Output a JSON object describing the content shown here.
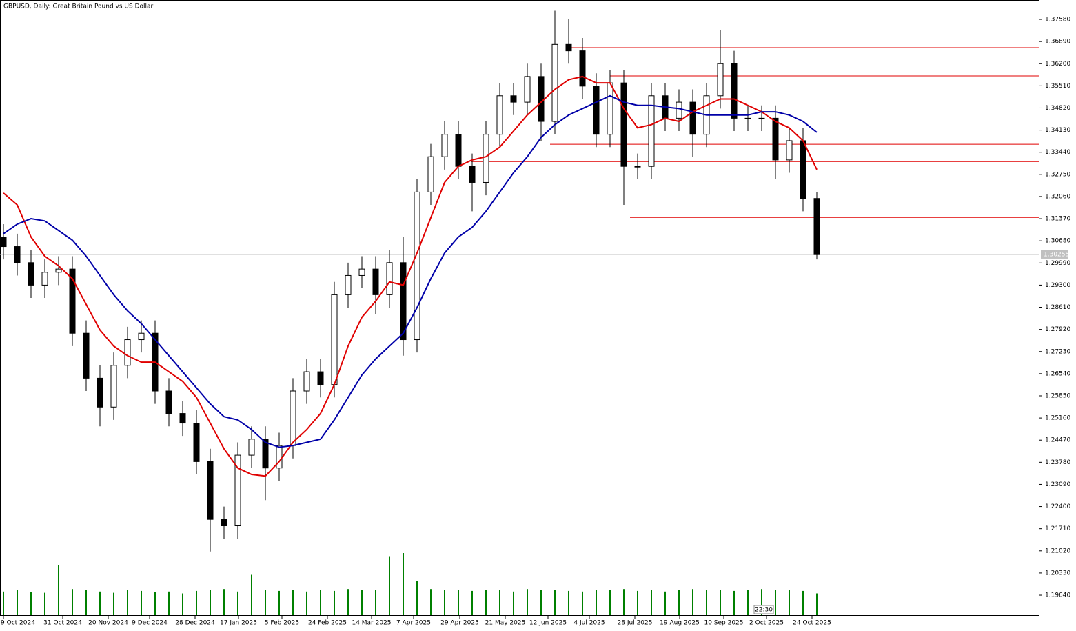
{
  "chart_data": {
    "type": "candlestick",
    "title": "GBPUSD, Daily:  Great Britain Pound vs US Dollar",
    "open": [
      1.308,
      1.305,
      1.3,
      1.293,
      1.297,
      1.298,
      1.278,
      1.264,
      1.255,
      1.268,
      1.276,
      1.278,
      1.26,
      1.253,
      1.25,
      1.238,
      1.22,
      1.218,
      1.24,
      1.245,
      1.236,
      1.243,
      1.26,
      1.266,
      1.262,
      1.29,
      1.296,
      1.298,
      1.29,
      1.3,
      1.276,
      1.322,
      1.333,
      1.34,
      1.33,
      1.325,
      1.34,
      1.352,
      1.35,
      1.358,
      1.344,
      1.368,
      1.366,
      1.355,
      1.34,
      1.356,
      1.33,
      1.33,
      1.352,
      1.345,
      1.35,
      1.34,
      1.352,
      1.362,
      1.345,
      1.345,
      1.345,
      1.332,
      1.338,
      1.32
    ],
    "high": [
      1.312,
      1.309,
      1.304,
      1.301,
      1.302,
      1.302,
      1.282,
      1.268,
      1.272,
      1.28,
      1.282,
      1.282,
      1.264,
      1.257,
      1.254,
      1.242,
      1.224,
      1.244,
      1.249,
      1.249,
      1.247,
      1.264,
      1.27,
      1.27,
      1.294,
      1.3,
      1.302,
      1.302,
      1.304,
      1.308,
      1.326,
      1.337,
      1.344,
      1.344,
      1.334,
      1.344,
      1.356,
      1.356,
      1.362,
      1.362,
      1.3785,
      1.376,
      1.37,
      1.359,
      1.36,
      1.36,
      1.334,
      1.356,
      1.356,
      1.354,
      1.354,
      1.356,
      1.3725,
      1.366,
      1.349,
      1.349,
      1.349,
      1.342,
      1.342,
      1.322
    ],
    "low": [
      1.301,
      1.296,
      1.289,
      1.289,
      1.293,
      1.274,
      1.26,
      1.249,
      1.251,
      1.264,
      1.272,
      1.256,
      1.249,
      1.246,
      1.234,
      1.21,
      1.214,
      1.214,
      1.236,
      1.226,
      1.232,
      1.239,
      1.256,
      1.258,
      1.258,
      1.286,
      1.292,
      1.284,
      1.286,
      1.271,
      1.272,
      1.318,
      1.329,
      1.326,
      1.316,
      1.321,
      1.336,
      1.346,
      1.346,
      1.338,
      1.34,
      1.362,
      1.351,
      1.336,
      1.336,
      1.318,
      1.326,
      1.326,
      1.341,
      1.341,
      1.333,
      1.336,
      1.348,
      1.341,
      1.341,
      1.341,
      1.326,
      1.328,
      1.316,
      1.301
    ],
    "close": [
      1.305,
      1.3,
      1.293,
      1.297,
      1.298,
      1.278,
      1.264,
      1.255,
      1.268,
      1.276,
      1.278,
      1.26,
      1.253,
      1.25,
      1.238,
      1.22,
      1.218,
      1.24,
      1.245,
      1.236,
      1.243,
      1.26,
      1.266,
      1.262,
      1.29,
      1.296,
      1.298,
      1.29,
      1.3,
      1.276,
      1.322,
      1.333,
      1.34,
      1.33,
      1.325,
      1.34,
      1.352,
      1.35,
      1.358,
      1.344,
      1.368,
      1.366,
      1.355,
      1.34,
      1.356,
      1.33,
      1.33,
      1.352,
      1.345,
      1.35,
      1.34,
      1.352,
      1.362,
      1.345,
      1.345,
      1.345,
      1.332,
      1.338,
      1.32,
      1.3025
    ],
    "series": [
      {
        "color": "#e00000",
        "values": [
          1.3217,
          1.318,
          1.308,
          1.302,
          1.299,
          1.295,
          1.287,
          1.279,
          1.274,
          1.271,
          1.269,
          1.269,
          1.266,
          1.263,
          1.258,
          1.25,
          1.242,
          1.236,
          1.234,
          1.2335,
          1.238,
          1.244,
          1.248,
          1.253,
          1.262,
          1.274,
          1.283,
          1.288,
          1.294,
          1.293,
          1.303,
          1.314,
          1.325,
          1.33,
          1.332,
          1.333,
          1.336,
          1.341,
          1.346,
          1.35,
          1.354,
          1.357,
          1.358,
          1.356,
          1.356,
          1.348,
          1.342,
          1.343,
          1.345,
          1.344,
          1.347,
          1.349,
          1.351,
          1.351,
          1.349,
          1.347,
          1.344,
          1.342,
          1.338,
          1.329
        ]
      },
      {
        "color": "#0000a8",
        "values": [
          1.309,
          1.312,
          1.3137,
          1.313,
          1.31,
          1.307,
          1.302,
          1.296,
          1.29,
          1.285,
          1.281,
          1.276,
          1.271,
          1.266,
          1.261,
          1.256,
          1.252,
          1.251,
          1.248,
          1.244,
          1.2425,
          1.243,
          1.244,
          1.245,
          1.251,
          1.258,
          1.265,
          1.27,
          1.274,
          1.278,
          1.286,
          1.295,
          1.303,
          1.308,
          1.311,
          1.316,
          1.322,
          1.328,
          1.333,
          1.339,
          1.343,
          1.346,
          1.348,
          1.35,
          1.352,
          1.35,
          1.349,
          1.349,
          1.3485,
          1.348,
          1.347,
          1.346,
          1.346,
          1.346,
          1.346,
          1.347,
          1.347,
          1.346,
          1.344,
          1.3406
        ]
      }
    ],
    "levels": [
      {
        "value": 1.367,
        "start": 41.05
      },
      {
        "value": 1.3582,
        "start": 44
      },
      {
        "value": 1.3369,
        "start": 39.65
      },
      {
        "value": 1.3315,
        "start": 33.9
      },
      {
        "value": 1.3141,
        "start": 45.45
      }
    ],
    "last_price": {
      "value": 1.30255,
      "label": "1.30255"
    },
    "volume": [
      38,
      40,
      37,
      36,
      80,
      42,
      41,
      38,
      36,
      40,
      39,
      37,
      38,
      35,
      39,
      40,
      42,
      38,
      65,
      40,
      39,
      41,
      38,
      40,
      39,
      42,
      40,
      41,
      95,
      100,
      55,
      42,
      40,
      41,
      39,
      40,
      41,
      38,
      42,
      40,
      41,
      39,
      38,
      40,
      41,
      42,
      39,
      40,
      38,
      41,
      42,
      40,
      41,
      39,
      40,
      42,
      41,
      40,
      39,
      35
    ],
    "volume_lim": [
      0,
      100
    ],
    "timer": "22:30",
    "xlim": [
      -0.25,
      75.15
    ],
    "ylim": [
      1.18996,
      1.38182
    ],
    "xticks": [
      {
        "value": 0,
        "label": "9 Oct 2024"
      },
      {
        "value": 4.3,
        "label": "31 Oct 2024"
      },
      {
        "value": 7.6,
        "label": "20 Nov 2024"
      },
      {
        "value": 10.6,
        "label": "9 Dec 2024"
      },
      {
        "value": 13.9,
        "label": "28 Dec 2024"
      },
      {
        "value": 17.05,
        "label": "17 Jan 2025"
      },
      {
        "value": 20.2,
        "label": "5 Feb 2025"
      },
      {
        "value": 23.5,
        "label": "24 Feb 2025"
      },
      {
        "value": 26.7,
        "label": "14 Mar 2025"
      },
      {
        "value": 29.75,
        "label": "7 Apr 2025"
      },
      {
        "value": 33.1,
        "label": "29 Apr 2025"
      },
      {
        "value": 36.4,
        "label": "21 May 2025"
      },
      {
        "value": 39.5,
        "label": "12 Jun 2025"
      },
      {
        "value": 42.5,
        "label": "4 Jul 2025"
      },
      {
        "value": 45.8,
        "label": "28 Jul 2025"
      },
      {
        "value": 49.05,
        "label": "19 Aug 2025"
      },
      {
        "value": 52.25,
        "label": "10 Sep 2025"
      },
      {
        "value": 55.35,
        "label": "2 Oct 2025"
      },
      {
        "value": 58.65,
        "label": "24 Oct 2025"
      }
    ],
    "yticks": [
      {
        "value": 1.3758,
        "label": "1.37580"
      },
      {
        "value": 1.3689,
        "label": "1.36890"
      },
      {
        "value": 1.362,
        "label": "1.36200"
      },
      {
        "value": 1.3551,
        "label": "1.35510"
      },
      {
        "value": 1.3482,
        "label": "1.34820"
      },
      {
        "value": 1.3413,
        "label": "1.34130"
      },
      {
        "value": 1.3344,
        "label": "1.33440"
      },
      {
        "value": 1.3275,
        "label": "1.32750"
      },
      {
        "value": 1.3206,
        "label": "1.32060"
      },
      {
        "value": 1.3137,
        "label": "1.31370"
      },
      {
        "value": 1.3068,
        "label": "1.30680"
      },
      {
        "value": 1.2999,
        "label": "1.29990"
      },
      {
        "value": 1.293,
        "label": "1.29300"
      },
      {
        "value": 1.2861,
        "label": "1.28610"
      },
      {
        "value": 1.2792,
        "label": "1.27920"
      },
      {
        "value": 1.2723,
        "label": "1.27230"
      },
      {
        "value": 1.2654,
        "label": "1.26540"
      },
      {
        "value": 1.2585,
        "label": "1.25850"
      },
      {
        "value": 1.2516,
        "label": "1.25160"
      },
      {
        "value": 1.2447,
        "label": "1.24470"
      },
      {
        "value": 1.2378,
        "label": "1.23780"
      },
      {
        "value": 1.2309,
        "label": "1.23090"
      },
      {
        "value": 1.224,
        "label": "1.22400"
      },
      {
        "value": 1.2171,
        "label": "1.21710"
      },
      {
        "value": 1.2102,
        "label": "1.21020"
      },
      {
        "value": 1.2033,
        "label": "1.20330"
      },
      {
        "value": 1.1964,
        "label": "1.19640"
      }
    ],
    "volume_color": "#008000",
    "level_color": "#e00000"
  }
}
